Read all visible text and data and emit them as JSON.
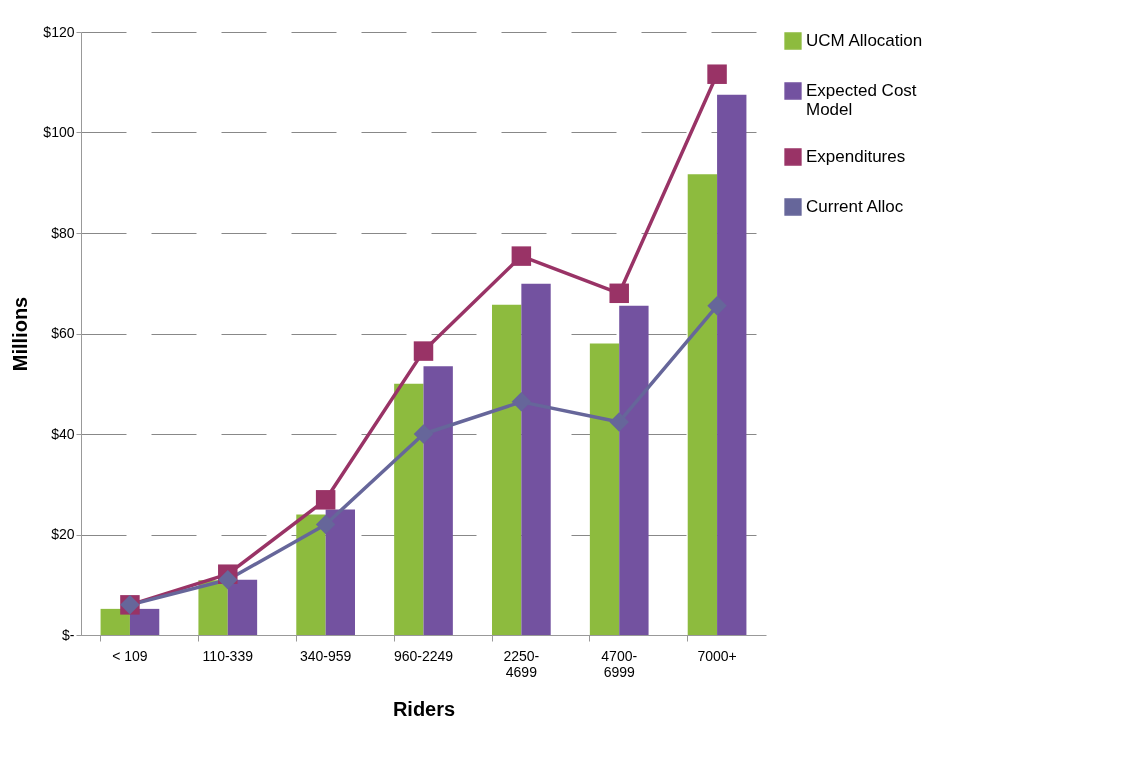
{
  "chart_data": {
    "type": "bar",
    "xlabel": "Riders",
    "ylabel": "Millions",
    "categories": [
      "< 109",
      "110-339",
      "340-959",
      "960-2249",
      "2250-\n4699",
      "4700-\n6999",
      "7000+"
    ],
    "series": [
      {
        "name": "UCM Allocation",
        "color": "#8dbb3e",
        "values": [
          5.2,
          10.9,
          24,
          50,
          65.7,
          58,
          91.7
        ]
      },
      {
        "name": "Expected Cost\nModel",
        "color": "#7352a0",
        "values": [
          5.2,
          11,
          25,
          53.5,
          69.9,
          65.5,
          107.5
        ]
      },
      {
        "name": "Expenditures",
        "type": "line",
        "marker": "square",
        "color": "#993366",
        "values": [
          6,
          12.1,
          26.9,
          56.5,
          75.4,
          68,
          111.6
        ]
      },
      {
        "name": "Current Alloc",
        "type": "line",
        "marker": "diamond",
        "color": "#66669a",
        "values": [
          6,
          11,
          22,
          40,
          46.4,
          42.4,
          65.5
        ]
      }
    ],
    "ylim": [
      0,
      120
    ],
    "yticks": [
      {
        "value": 0,
        "label": "$-"
      },
      {
        "value": 20,
        "label": "$20"
      },
      {
        "value": 40,
        "label": "$40"
      },
      {
        "value": 60,
        "label": "$60"
      },
      {
        "value": 80,
        "label": "$80"
      },
      {
        "value": 100,
        "label": "$100"
      },
      {
        "value": 120,
        "label": "$120"
      }
    ],
    "grid": "y",
    "legend": "right"
  }
}
